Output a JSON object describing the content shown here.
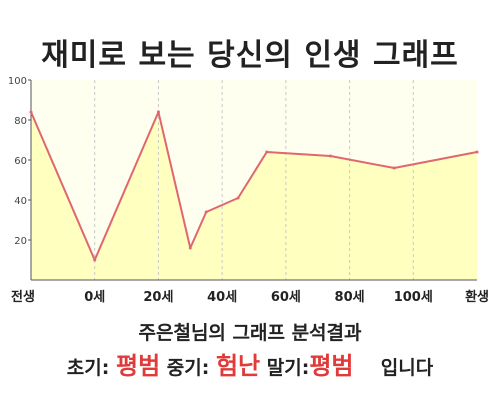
{
  "title": "재미로 보는 당신의 인생 그래프",
  "summary": "주은철님의 그래프 분석결과",
  "result": {
    "early_label": "초기:",
    "early_value": "평범",
    "middle_label": "중기:",
    "middle_value": "험난",
    "late_label": "말기:",
    "late_value": "평범",
    "ending": "입니다"
  },
  "colors": {
    "line": "#e06670",
    "fill": "#ffffc0",
    "plot_bg": "#fffff0",
    "highlight": "#e03a3a"
  },
  "chart_data": {
    "type": "area",
    "title": "재미로 보는 당신의 인생 그래프",
    "xlabel": "",
    "ylabel": "",
    "ylim": [
      0,
      100
    ],
    "y_ticks": [
      20,
      40,
      60,
      80,
      100
    ],
    "x_tick_labels": [
      "전생",
      "0세",
      "20세",
      "40세",
      "60세",
      "80세",
      "100세",
      "환생"
    ],
    "x_tick_positions": [
      -20,
      0,
      20,
      40,
      60,
      80,
      100,
      120
    ],
    "xlim": [
      -20,
      120
    ],
    "grid": "vertical-dashed",
    "legend": "none",
    "series": [
      {
        "x": [
          -20,
          0,
          20,
          30,
          35,
          45,
          54,
          74,
          94,
          120
        ],
        "values": [
          84,
          10,
          84,
          16,
          34,
          41,
          64,
          62,
          56,
          64
        ]
      }
    ]
  }
}
